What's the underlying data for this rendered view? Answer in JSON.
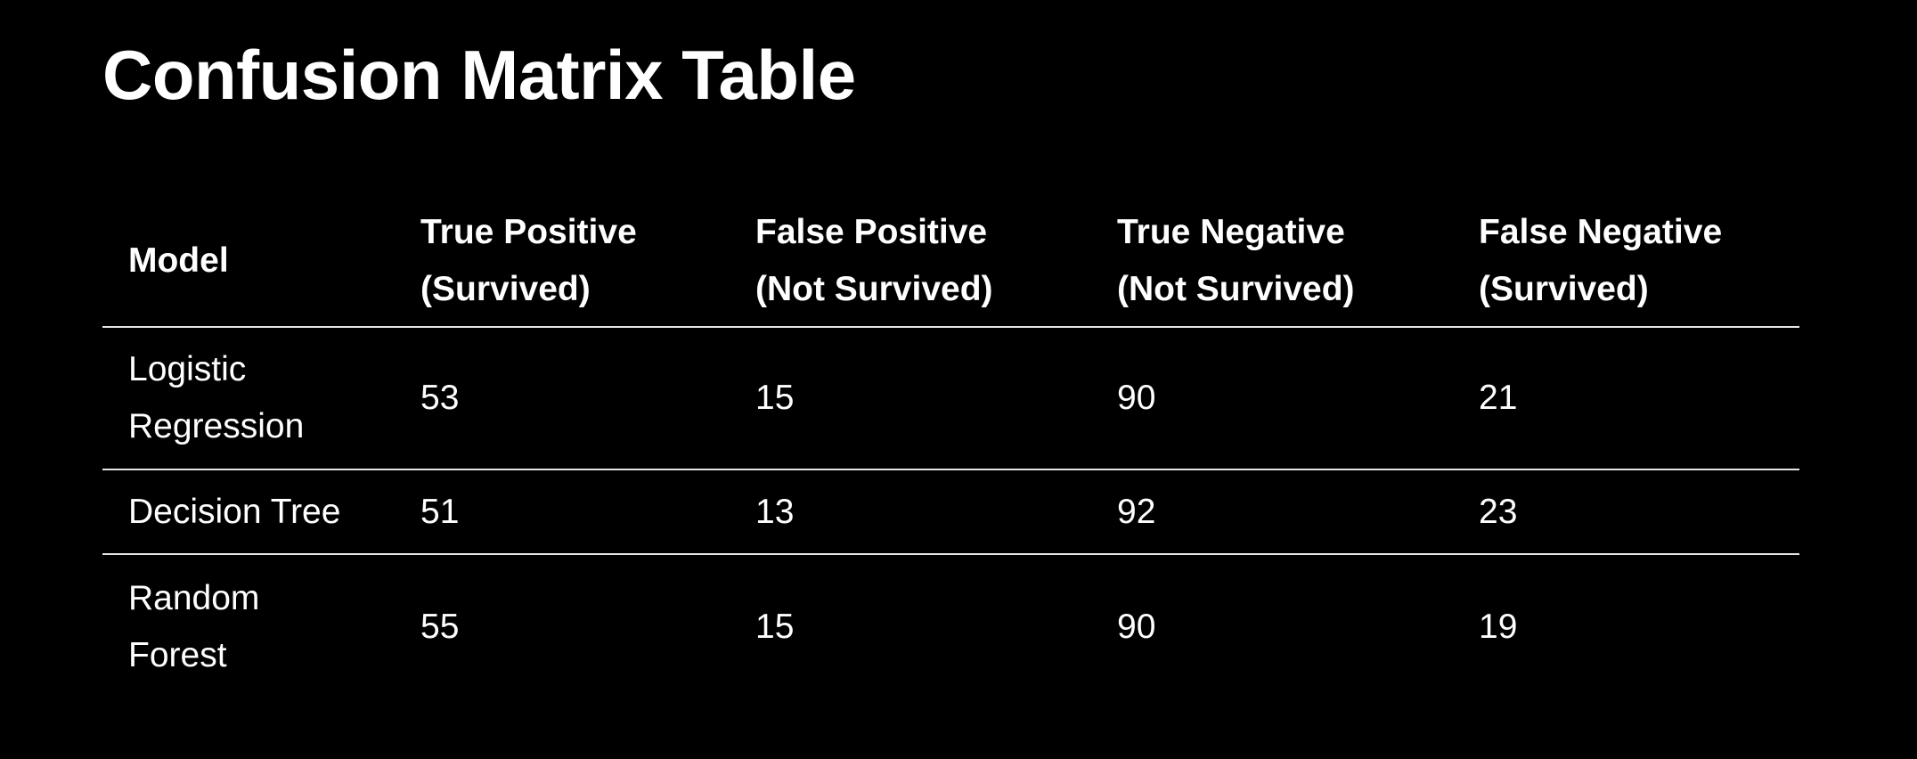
{
  "title": "Confusion Matrix Table",
  "table": {
    "headers": [
      {
        "line1": "Model",
        "line2": ""
      },
      {
        "line1": "True Positive",
        "line2": "(Survived)"
      },
      {
        "line1": "False Positive",
        "line2": "(Not Survived)"
      },
      {
        "line1": "True Negative",
        "line2": "(Not Survived)"
      },
      {
        "line1": "False Negative",
        "line2": "(Survived)"
      }
    ],
    "rows": [
      {
        "model_line1": "Logistic",
        "model_line2": "Regression",
        "tp": "53",
        "fp": "15",
        "tn": "90",
        "fn": "21"
      },
      {
        "model_line1": "Decision Tree",
        "model_line2": "",
        "tp": "51",
        "fp": "13",
        "tn": "92",
        "fn": "23"
      },
      {
        "model_line1": "Random",
        "model_line2": "Forest",
        "tp": "55",
        "fp": "15",
        "tn": "90",
        "fn": "19"
      }
    ]
  }
}
